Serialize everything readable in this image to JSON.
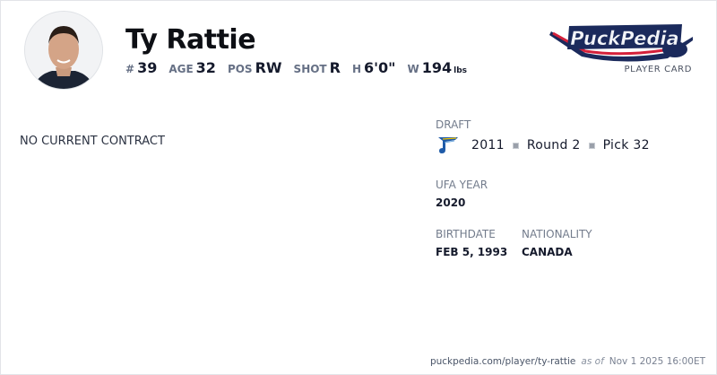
{
  "player": {
    "name": "Ty Rattie",
    "stats": [
      {
        "label": "#",
        "value": "39"
      },
      {
        "label": "AGE",
        "value": "32"
      },
      {
        "label": "POS",
        "value": "RW"
      },
      {
        "label": "SHOT",
        "value": "R"
      },
      {
        "label": "H",
        "value": "6'0\""
      },
      {
        "label": "W",
        "value": "194",
        "unit": "lbs"
      }
    ]
  },
  "brand": {
    "logo_text": "PuckPedia",
    "subtitle": "PLAYER CARD",
    "colors": {
      "navy": "#1b2a5c",
      "red": "#d4203a"
    }
  },
  "contract": {
    "status": "NO CURRENT CONTRACT"
  },
  "draft": {
    "label": "DRAFT",
    "team_icon": "st-louis-blues-note-icon",
    "year": "2011",
    "round": "Round 2",
    "pick": "Pick 32"
  },
  "ufa": {
    "label": "UFA YEAR",
    "value": "2020"
  },
  "birthdate": {
    "label": "BIRTHDATE",
    "value": "FEB 5, 1993"
  },
  "nationality": {
    "label": "NATIONALITY",
    "value": "CANADA"
  },
  "footer": {
    "url": "puckpedia.com/player/ty-rattie",
    "as_of": "as of",
    "timestamp": "Nov 1 2025 16:00ET"
  }
}
